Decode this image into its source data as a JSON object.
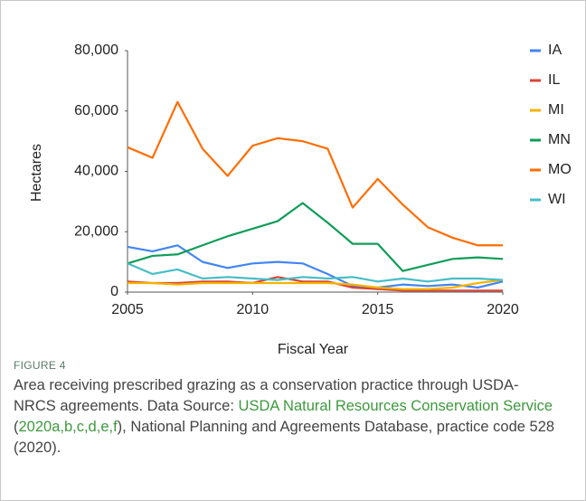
{
  "chart_data": {
    "type": "line",
    "x_label": "Fiscal Year",
    "y_label": "Hectares",
    "x": [
      2005,
      2006,
      2007,
      2008,
      2009,
      2010,
      2011,
      2012,
      2013,
      2014,
      2015,
      2016,
      2017,
      2018,
      2019,
      2020
    ],
    "xlim": [
      2005,
      2020
    ],
    "xticks": [
      2005,
      2010,
      2015,
      2020
    ],
    "ylim": [
      0,
      80000
    ],
    "yticks": [
      0,
      {
        "value": 20000,
        "label": "20,000"
      },
      {
        "value": 40000,
        "label": "40,000"
      },
      {
        "value": 60000,
        "label": "60,000"
      },
      {
        "value": 80000,
        "label": "80,000"
      }
    ],
    "grid": false,
    "legend": "right",
    "series": [
      {
        "name": "IA",
        "color": "#4285f4",
        "values": [
          15000,
          13500,
          15500,
          10000,
          8000,
          9500,
          10000,
          9500,
          6000,
          2000,
          1500,
          2500,
          2000,
          2500,
          1500,
          3500
        ]
      },
      {
        "name": "IL",
        "color": "#db4437",
        "values": [
          3500,
          3000,
          3000,
          3500,
          3500,
          3000,
          5000,
          3500,
          3500,
          1500,
          1000,
          500,
          500,
          500,
          500,
          500
        ]
      },
      {
        "name": "MI",
        "color": "#f4b400",
        "values": [
          3000,
          3000,
          2500,
          3000,
          3000,
          3000,
          3000,
          3000,
          3000,
          2500,
          1500,
          1000,
          1000,
          1500,
          3000,
          4000
        ]
      },
      {
        "name": "MN",
        "color": "#0f9d58",
        "values": [
          9500,
          12000,
          12500,
          15500,
          18500,
          21000,
          23500,
          29500,
          23000,
          16000,
          16000,
          7000,
          9000,
          11000,
          11500,
          11000
        ]
      },
      {
        "name": "MO",
        "color": "#ff6d01",
        "values": [
          48000,
          44500,
          63000,
          47500,
          38500,
          48500,
          51000,
          50000,
          47500,
          28000,
          37500,
          29000,
          21500,
          18000,
          15500,
          15500
        ]
      },
      {
        "name": "WI",
        "color": "#46bdc6",
        "values": [
          9500,
          6000,
          7500,
          4500,
          5000,
          4500,
          4000,
          5000,
          4500,
          5000,
          3500,
          4500,
          3500,
          4500,
          4500,
          4000
        ]
      }
    ]
  },
  "caption": {
    "label": "FIGURE 4",
    "parts": [
      {
        "text": "Area receiving prescribed grazing as a conservation practice through USDA-NRCS agreements. Data Source: "
      },
      {
        "link": "USDA Natural Resources Conservation Service"
      },
      {
        "text": " ("
      },
      {
        "link": "2020a,b,c,d,e,f"
      },
      {
        "text": "), National Planning and Agreements Database, practice code 528 (2020)."
      }
    ]
  }
}
